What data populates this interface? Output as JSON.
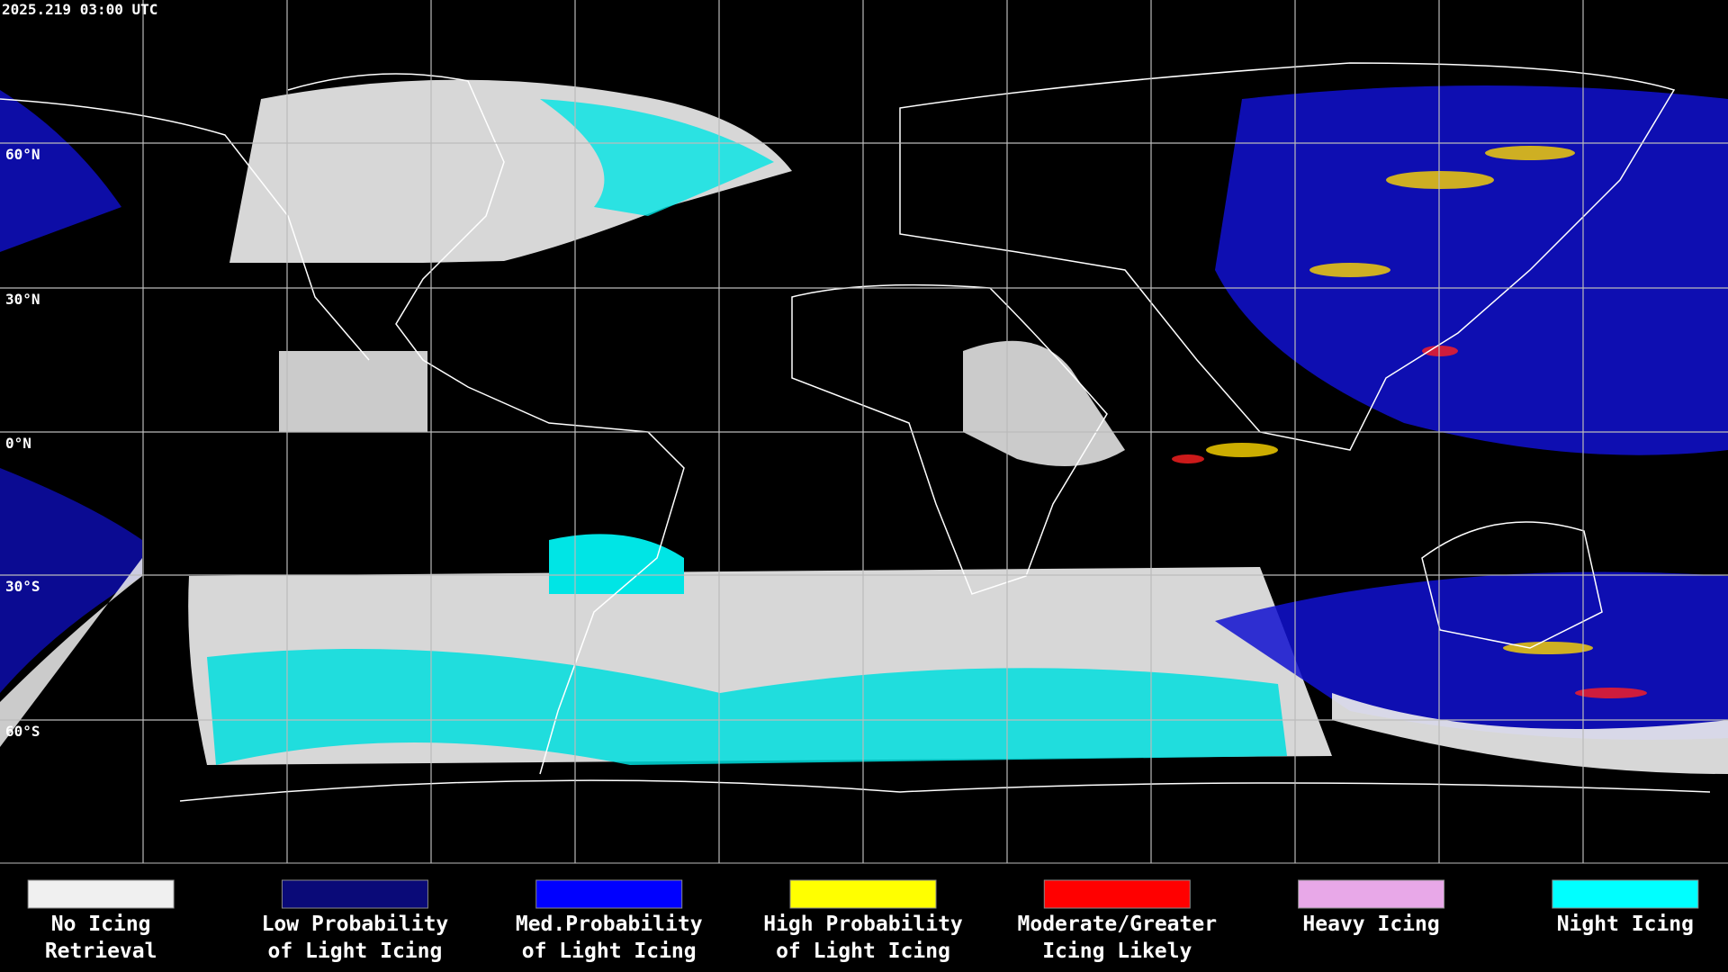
{
  "timestamp": "2025.219 03:00 UTC",
  "latitude_labels": [
    "60°N",
    "30°N",
    "0°N",
    "30°S",
    "60°S"
  ],
  "legend": {
    "items": [
      {
        "lines": [
          "No Icing",
          "Retrieval"
        ],
        "color": "#f0f0f0"
      },
      {
        "lines": [
          "Low Probability",
          "of Light Icing"
        ],
        "color": "#0a0a78"
      },
      {
        "lines": [
          "Med.Probability",
          "of Light Icing"
        ],
        "color": "#0000ff"
      },
      {
        "lines": [
          "High Probability",
          "of Light Icing"
        ],
        "color": "#ffff00"
      },
      {
        "lines": [
          "Moderate/Greater",
          "Icing Likely"
        ],
        "color": "#ff0000"
      },
      {
        "lines": [
          "Heavy Icing"
        ],
        "color": "#e8a8e8"
      },
      {
        "lines": [
          "Night Icing"
        ],
        "color": "#00ffff"
      }
    ]
  }
}
